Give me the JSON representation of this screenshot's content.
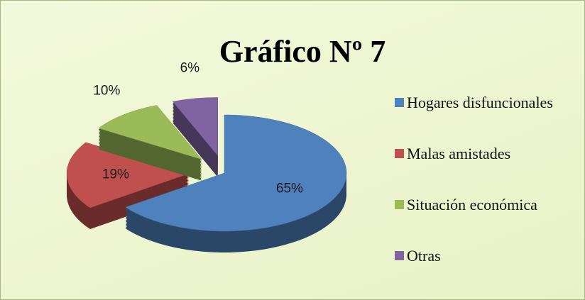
{
  "chart_data": {
    "type": "pie",
    "title": "Gráfico Nº 7",
    "categories": [
      "Hogares disfuncionales",
      "Malas amistades",
      "Situación económica",
      "Otras"
    ],
    "values": [
      65,
      19,
      10,
      6
    ],
    "value_labels": [
      "65%",
      "19%",
      "10%",
      "6%"
    ],
    "colors": [
      "#4f81bd",
      "#c0504d",
      "#9bbb59",
      "#8064a2"
    ],
    "legend": "right"
  }
}
